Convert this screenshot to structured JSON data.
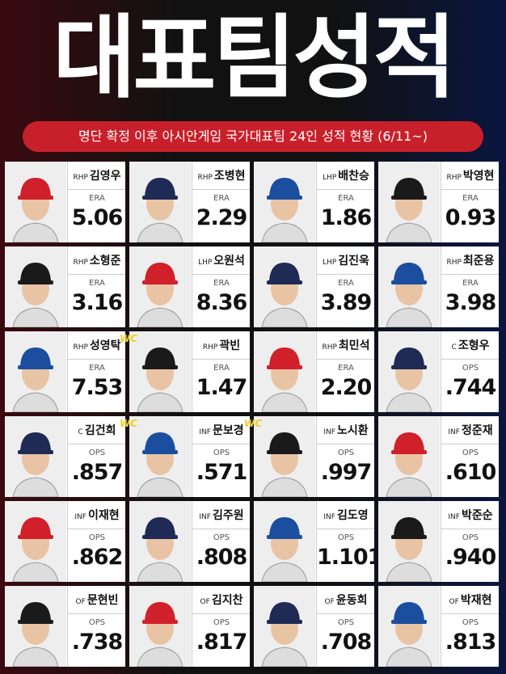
{
  "header": {
    "title": "대표팀성적",
    "subtitle": "명단 확정 이후 아시안게임 국가대표팀 24인 성적 현황 (6/11~)"
  },
  "players": [
    {
      "position": "RHP",
      "name": "김영우",
      "stat": "ERA",
      "value": "5.06"
    },
    {
      "position": "RHP",
      "name": "조병현",
      "stat": "ERA",
      "value": "2.29"
    },
    {
      "position": "LHP",
      "name": "배찬승",
      "stat": "ERA",
      "value": "1.86"
    },
    {
      "position": "RHP",
      "name": "박영현",
      "stat": "ERA",
      "value": "0.93"
    },
    {
      "position": "RHP",
      "name": "소형준",
      "stat": "ERA",
      "value": "3.16"
    },
    {
      "position": "LHP",
      "name": "오원석",
      "stat": "ERA",
      "value": "8.36"
    },
    {
      "position": "LHP",
      "name": "김진욱",
      "stat": "ERA",
      "value": "3.89"
    },
    {
      "position": "RHP",
      "name": "최준용",
      "stat": "ERA",
      "value": "3.98"
    },
    {
      "position": "RHP",
      "name": "성영탁",
      "stat": "ERA",
      "value": "7.53"
    },
    {
      "position": "RHP",
      "name": "곽빈",
      "stat": "ERA",
      "value": "1.47",
      "badge": "WC"
    },
    {
      "position": "RHP",
      "name": "최민석",
      "stat": "ERA",
      "value": "2.20"
    },
    {
      "position": "C",
      "name": "조형우",
      "stat": "OPS",
      "value": ".744"
    },
    {
      "position": "C",
      "name": "김건희",
      "stat": "OPS",
      "value": ".857"
    },
    {
      "position": "INF",
      "name": "문보경",
      "stat": "OPS",
      "value": ".571",
      "badge": "WC"
    },
    {
      "position": "INF",
      "name": "노시환",
      "stat": "OPS",
      "value": ".997",
      "badge": "WC"
    },
    {
      "position": "INF",
      "name": "정준재",
      "stat": "OPS",
      "value": ".610"
    },
    {
      "position": "INF",
      "name": "이재현",
      "stat": "OPS",
      "value": ".862"
    },
    {
      "position": "INF",
      "name": "김주원",
      "stat": "OPS",
      "value": ".808"
    },
    {
      "position": "INF",
      "name": "김도영",
      "stat": "OPS",
      "value": "1.101"
    },
    {
      "position": "INF",
      "name": "박준순",
      "stat": "OPS",
      "value": ".940"
    },
    {
      "position": "OF",
      "name": "문현빈",
      "stat": "OPS",
      "value": ".738"
    },
    {
      "position": "OF",
      "name": "김지찬",
      "stat": "OPS",
      "value": ".817"
    },
    {
      "position": "OF",
      "name": "윤동희",
      "stat": "OPS",
      "value": ".708"
    },
    {
      "position": "OF",
      "name": "박재현",
      "stat": "OPS",
      "value": ".813"
    }
  ]
}
